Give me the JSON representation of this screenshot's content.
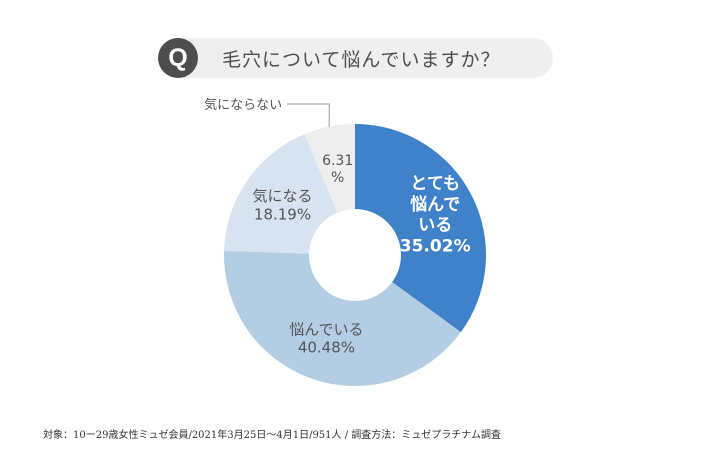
{
  "question": {
    "badge": "Q",
    "text": "毛穴について悩んでいますか？"
  },
  "chart_data": {
    "type": "pie",
    "title": "毛穴について悩んでいますか？",
    "slices": [
      {
        "label": "とても悩んでいる",
        "value": 35.02,
        "display_lines": [
          "とても",
          "悩んで",
          "いる",
          "35.02%"
        ],
        "color": "#3f82c9",
        "text_color": "#ffffff"
      },
      {
        "label": "悩んでいる",
        "value": 40.48,
        "display_lines": [
          "悩んでいる",
          "40.48%"
        ],
        "color": "#b3cde5",
        "text_color": "#555555"
      },
      {
        "label": "気になる",
        "value": 18.19,
        "display_lines": [
          "気になる",
          "18.19%"
        ],
        "color": "#d7e3f0",
        "text_color": "#555555"
      },
      {
        "label": "気にならない",
        "value": 6.31,
        "display_lines": [
          "6.31",
          "%"
        ],
        "color": "#eeeeee",
        "text_color": "#555555"
      }
    ],
    "callout_label": "気にならない",
    "donut": true
  },
  "footnote": "対象：10ー29歳女性ミュゼ会員/2021年3月25日〜4月1日/951人 / 調査方法：ミュゼプラチナム調査"
}
